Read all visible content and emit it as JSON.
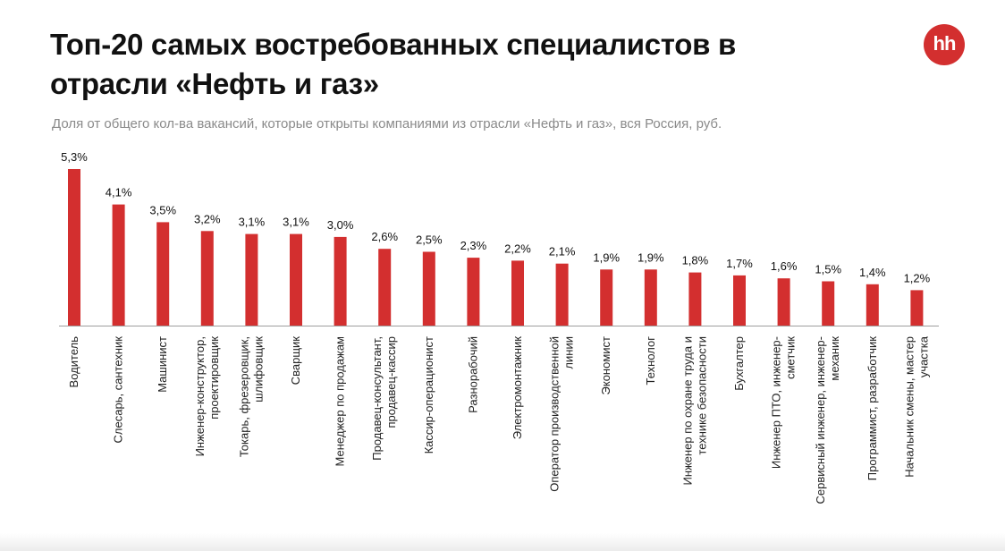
{
  "header": {
    "title": "Топ-20 самых востребованных специалистов в отрасли «Нефть и газ»",
    "subtitle": "Доля от общего кол-ва вакансий, которые открыты компаниями из отрасли «Нефть и газ», вся Россия, руб.",
    "logo_text": "hh"
  },
  "colors": {
    "bar": "#d32f2f",
    "logo": "#d32f2f",
    "axis": "#9e9e9e"
  },
  "chart_data": {
    "type": "bar",
    "title": "Топ-20 самых востребованных специалистов в отрасли «Нефть и газ»",
    "subtitle": "Доля от общего кол-ва вакансий, которые открыты компаниями из отрасли «Нефть и газ», вся Россия, руб.",
    "xlabel": "",
    "ylabel": "",
    "ylim": [
      0,
      5.3
    ],
    "grid": false,
    "legend": "none",
    "categories": [
      "Водитель",
      "Слесарь, сантехник",
      "Машинист",
      "Инженер-конструктор, проектировщик",
      "Токарь, фрезеровщик, шлифовщик",
      "Сварщик",
      "Менеджер по продажам",
      "Продавец-консультант, продавец-кассир",
      "Кассир-операционист",
      "Разнорабочий",
      "Электромонтажник",
      "Оператор производственной линии",
      "Экономист",
      "Технолог",
      "Инженер по охране труда и технике безопасности",
      "Бухгалтер",
      "Инженер ПТО, инженер-сметчик",
      "Сервисный инженер, инженер-механик",
      "Программист, разработчик",
      "Начальник смены, мастер участка"
    ],
    "category_lines": [
      [
        "Водитель"
      ],
      [
        "Слесарь, сантехник"
      ],
      [
        "Машинист"
      ],
      [
        "Инженер-конструктор,",
        "проектировщик"
      ],
      [
        "Токарь, фрезеровщик,",
        "шлифовщик"
      ],
      [
        "Сварщик"
      ],
      [
        "Менеджер по продажам"
      ],
      [
        "Продавец-консультант,",
        "продавец-кассир"
      ],
      [
        "Кассир-операционист"
      ],
      [
        "Разнорабочий"
      ],
      [
        "Электромонтажник"
      ],
      [
        "Оператор производственной",
        "линии"
      ],
      [
        "Экономист"
      ],
      [
        "Технолог"
      ],
      [
        "Инженер по охране труда и",
        "технике безопасности"
      ],
      [
        "Бухгалтер"
      ],
      [
        "Инженер ПТО, инженер-",
        "сметчик"
      ],
      [
        "Сервисный инженер, инженер-",
        "механик"
      ],
      [
        "Программист, разработчик"
      ],
      [
        "Начальник смены, мастер",
        "участка"
      ]
    ],
    "values": [
      5.3,
      4.1,
      3.5,
      3.2,
      3.1,
      3.1,
      3.0,
      2.6,
      2.5,
      2.3,
      2.2,
      2.1,
      1.9,
      1.9,
      1.8,
      1.7,
      1.6,
      1.5,
      1.4,
      1.2
    ],
    "value_labels": [
      "5,3%",
      "4,1%",
      "3,5%",
      "3,2%",
      "3,1%",
      "3,1%",
      "3,0%",
      "2,6%",
      "2,5%",
      "2,3%",
      "2,2%",
      "2,1%",
      "1,9%",
      "1,9%",
      "1,8%",
      "1,7%",
      "1,6%",
      "1,5%",
      "1,4%",
      "1,2%"
    ]
  }
}
